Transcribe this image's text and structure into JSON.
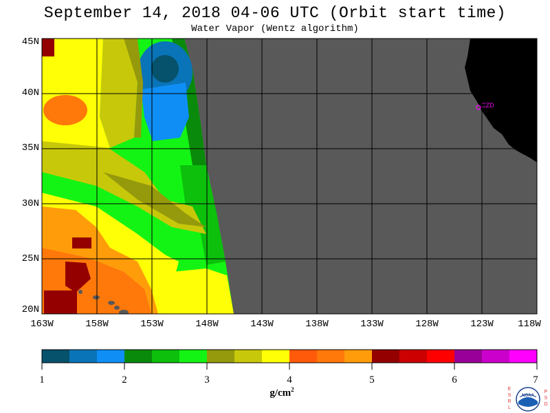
{
  "header": {
    "title": "September 14, 2018  04-06 UTC  (Orbit start time)",
    "subtitle": "Water Vapor (Wentz algorithm)"
  },
  "map": {
    "lat_labels": [
      "45N",
      "40N",
      "35N",
      "30N",
      "25N",
      "20N"
    ],
    "lon_labels": [
      "163W",
      "158W",
      "153W",
      "148W",
      "143W",
      "138W",
      "133W",
      "128W",
      "123W",
      "118W"
    ],
    "station_label": "CZD",
    "colors": {
      "no_data": "#595959",
      "land": "#000000",
      "grid": "#000000",
      "station": "#ff00ff"
    }
  },
  "colorbar": {
    "tick_labels": [
      "1",
      "2",
      "3",
      "4",
      "5",
      "6",
      "7"
    ],
    "unit_base": "g/cm",
    "unit_exp": "2",
    "colors": [
      "#06516b",
      "#0a74b8",
      "#0f8ef5",
      "#0a8a0a",
      "#0cc00c",
      "#14f414",
      "#959a0c",
      "#c8c80a",
      "#ffff05",
      "#ff5a0a",
      "#ff780a",
      "#ff9c0a",
      "#940000",
      "#cc0000",
      "#ff0000",
      "#990099",
      "#cc00cc",
      "#ff00ff"
    ]
  },
  "logo": {
    "left_letters": [
      "E",
      "S",
      "R",
      "L"
    ],
    "right_letters": [
      "P",
      "S",
      "D"
    ],
    "text": "NOAA"
  }
}
